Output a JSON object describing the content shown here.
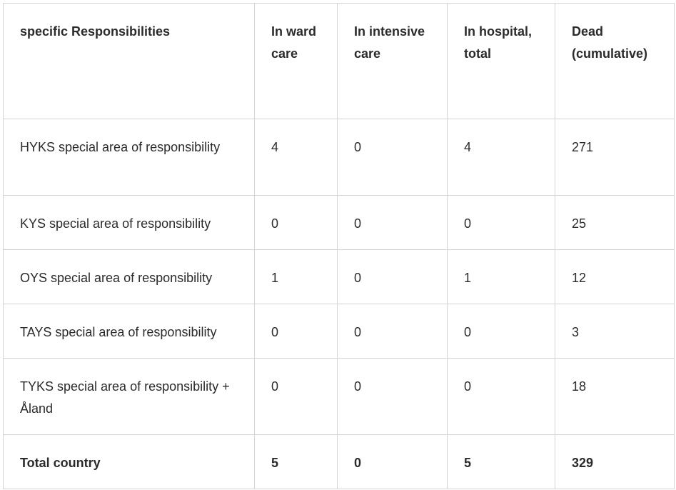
{
  "table": {
    "headers": [
      "specific Responsibilities",
      "In ward care",
      "In intensive care",
      "In hospital, total",
      "Dead (cumulative)"
    ],
    "rows": [
      {
        "area": "HYKS special area of responsibility",
        "ward": "4",
        "icu": "0",
        "hospital": "4",
        "dead": "271"
      },
      {
        "area": "KYS special area of responsibility",
        "ward": "0",
        "icu": "0",
        "hospital": "0",
        "dead": "25"
      },
      {
        "area": "OYS special area of responsibility",
        "ward": "1",
        "icu": "0",
        "hospital": "1",
        "dead": "12"
      },
      {
        "area": "TAYS special area of responsibility",
        "ward": "0",
        "icu": "0",
        "hospital": "0",
        "dead": "3"
      },
      {
        "area": "TYKS special area of responsibility + Åland",
        "ward": "0",
        "icu": "0",
        "hospital": "0",
        "dead": "18"
      }
    ],
    "total": {
      "area": "Total country",
      "ward": "5",
      "icu": "0",
      "hospital": "5",
      "dead": "329"
    }
  }
}
